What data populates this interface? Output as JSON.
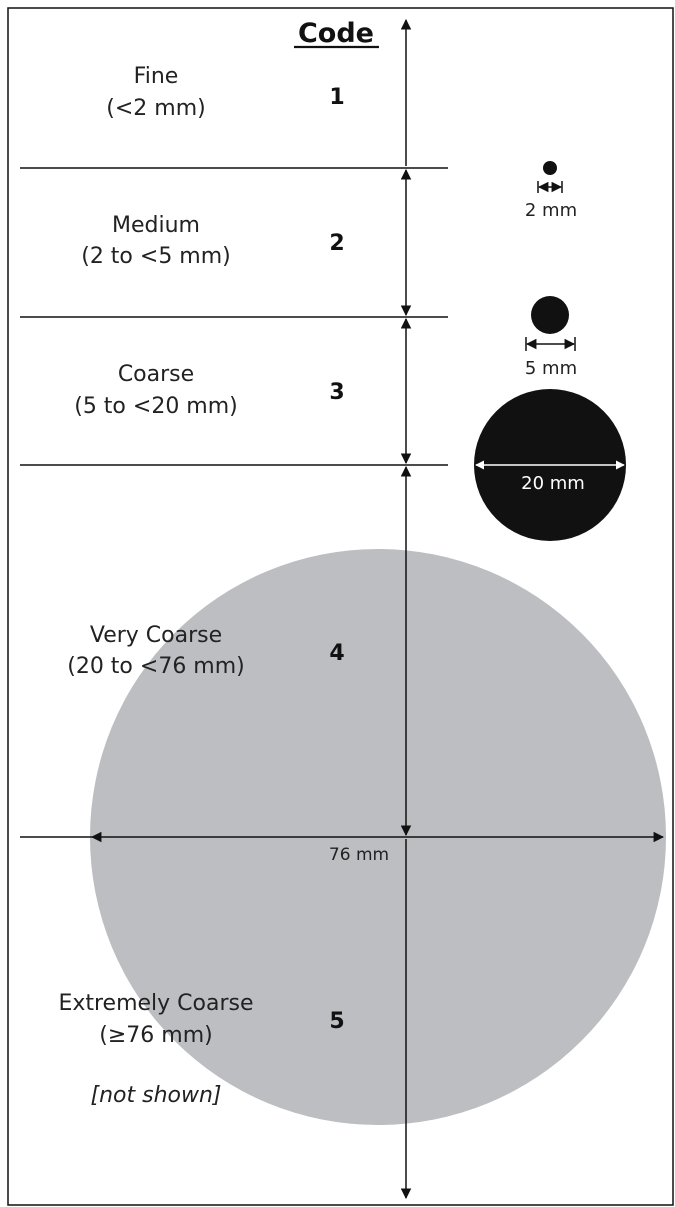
{
  "header": "Code",
  "categories": [
    {
      "name": "Fine",
      "range": "(<2 mm)",
      "code": "1"
    },
    {
      "name": "Medium",
      "range": "(2 to <5 mm)",
      "code": "2"
    },
    {
      "name": "Coarse",
      "range": "(5 to <20 mm)",
      "code": "3"
    },
    {
      "name": "Very Coarse",
      "range": "(20 to <76 mm)",
      "code": "4"
    },
    {
      "name": "Extremely Coarse",
      "range": "(≥76 mm)",
      "code": "5",
      "note": "[not shown]"
    }
  ],
  "measurements": {
    "small": "2 mm",
    "medium": "5 mm",
    "large": "20 mm",
    "very_large": "76 mm"
  },
  "colors": {
    "dark_circle": "#111111",
    "grey_circle": "#bcbec2",
    "line": "#111111"
  }
}
